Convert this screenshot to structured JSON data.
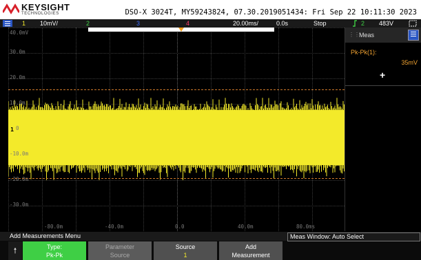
{
  "header": {
    "brand": "KEYSIGHT",
    "brand_sub": "TECHNOLOGIES",
    "device_info": "DSO-X 3024T, MY59243824, 07.30.2019051434: Fri Sep 22 10:11:30 2023"
  },
  "status_bar": {
    "ch1_num": "1",
    "ch1_scale": "10mV/",
    "ch2_num": "2",
    "ch3_num": "3",
    "ch4_num": "4",
    "timebase": "20.00ms/",
    "delay": "0.0s",
    "run_state": "Stop",
    "trigger_icon": "trigger-edge-icon",
    "trig_source": "2",
    "trig_level": "483V"
  },
  "graticule": {
    "y_labels": [
      "40.0mV",
      "30.0m",
      "20.0m",
      "10.0m",
      "0.0",
      "-10.0m",
      "-20.0m",
      "-30.0m"
    ],
    "x_labels": [
      "-80.0m",
      "-40.0m",
      "0.0",
      "40.0m",
      "80.0ms"
    ],
    "channel_marker": "1"
  },
  "measurements": {
    "title": "Meas",
    "label": "Pk-Pk(1):",
    "value": "35mV",
    "add": "+"
  },
  "softkeys": {
    "menu_title": "Add Measurements Menu",
    "window_label": "Meas Window: Auto Select",
    "keys": [
      {
        "line1": "Type:",
        "line2": "Pk-Pk"
      },
      {
        "line1": "Parameter",
        "line2": "Source"
      },
      {
        "line1": "Source",
        "line2": "1"
      },
      {
        "line1": "Add",
        "line2": "Measurement"
      }
    ]
  },
  "colors": {
    "ch1": "#f3ea2a",
    "ch2": "#3fcf45",
    "ch3": "#3b6cff",
    "ch4": "#ff3a6a",
    "cursor": "#d07a2a",
    "meas": "#f3a431"
  }
}
